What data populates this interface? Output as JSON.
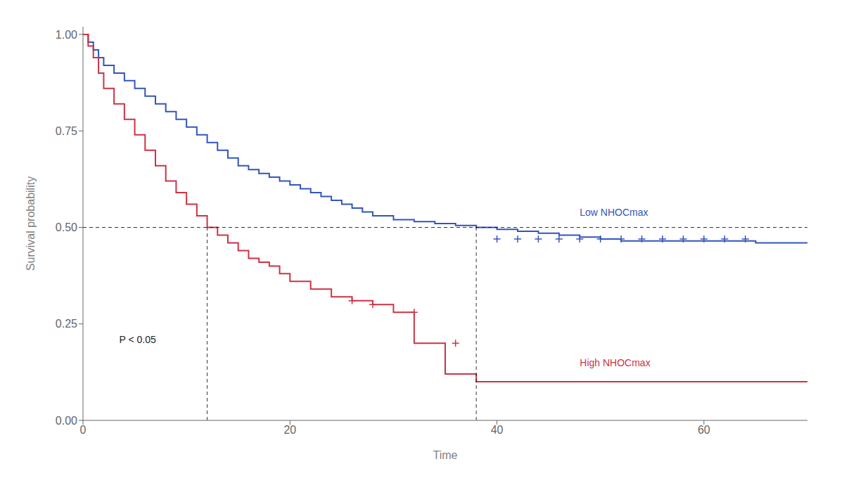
{
  "chart_data": {
    "type": "line",
    "xlabel": "Time",
    "ylabel": "Survival probability",
    "xlim": [
      0,
      70
    ],
    "xticks": [
      0,
      20,
      40,
      60
    ],
    "ylim": [
      0,
      1.02
    ],
    "yticks": [
      {
        "value": 0,
        "label": "0.00"
      },
      0.25,
      {
        "value": 0.5,
        "label": "0.50"
      },
      0.75,
      {
        "value": 1,
        "label": "1.00"
      }
    ],
    "grid": false,
    "series": [
      {
        "type": "step",
        "color": "#3355BB",
        "x": [
          0,
          0.5,
          0.5,
          1,
          1,
          1.5,
          1.5,
          2,
          2,
          3,
          3,
          4,
          4,
          5,
          5,
          6,
          6,
          7,
          7,
          8,
          8,
          9,
          9,
          10,
          10,
          11,
          11,
          12,
          12,
          13,
          13,
          14,
          14,
          15,
          15,
          16,
          16,
          17,
          17,
          18,
          18,
          19,
          19,
          20,
          20,
          21,
          21,
          22,
          22,
          23,
          23,
          24,
          24,
          25,
          25,
          26,
          26,
          27,
          27,
          28,
          28,
          30,
          30,
          32,
          32,
          34,
          34,
          36,
          36,
          38,
          38,
          40,
          40,
          42,
          42,
          44,
          44,
          46,
          46,
          48,
          48,
          50,
          50,
          52,
          52,
          65,
          65,
          70
        ],
        "values": [
          1.0,
          1.0,
          0.98,
          0.98,
          0.96,
          0.96,
          0.94,
          0.94,
          0.92,
          0.92,
          0.9,
          0.9,
          0.88,
          0.88,
          0.86,
          0.86,
          0.84,
          0.84,
          0.82,
          0.82,
          0.8,
          0.8,
          0.78,
          0.78,
          0.76,
          0.76,
          0.74,
          0.74,
          0.72,
          0.72,
          0.7,
          0.7,
          0.68,
          0.68,
          0.66,
          0.66,
          0.65,
          0.65,
          0.64,
          0.64,
          0.63,
          0.63,
          0.62,
          0.62,
          0.61,
          0.61,
          0.6,
          0.6,
          0.59,
          0.59,
          0.58,
          0.58,
          0.57,
          0.57,
          0.56,
          0.56,
          0.55,
          0.55,
          0.54,
          0.54,
          0.53,
          0.53,
          0.52,
          0.52,
          0.515,
          0.515,
          0.51,
          0.51,
          0.505,
          0.505,
          0.5,
          0.5,
          0.495,
          0.495,
          0.49,
          0.49,
          0.485,
          0.485,
          0.48,
          0.48,
          0.475,
          0.475,
          0.47,
          0.47,
          0.465,
          0.465,
          0.46,
          0.46
        ]
      },
      {
        "type": "scatter",
        "marker": "plus",
        "color": "#3355BB",
        "x": [
          40,
          42,
          44,
          46,
          48,
          50,
          52,
          54,
          56,
          58,
          60,
          62,
          64
        ],
        "values": [
          0.47,
          0.47,
          0.47,
          0.47,
          0.47,
          0.47,
          0.47,
          0.47,
          0.47,
          0.47,
          0.47,
          0.47,
          0.47
        ]
      },
      {
        "type": "step",
        "color": "#CC3344",
        "x": [
          0,
          0.5,
          0.5,
          1,
          1,
          1.5,
          1.5,
          2,
          2,
          3,
          3,
          4,
          4,
          5,
          5,
          6,
          6,
          7,
          7,
          8,
          8,
          9,
          9,
          10,
          10,
          11,
          11,
          12,
          12,
          13,
          13,
          14,
          14,
          15,
          15,
          16,
          16,
          17,
          17,
          18,
          18,
          19,
          19,
          20,
          20,
          22,
          22,
          24,
          24,
          26,
          26,
          28,
          28,
          30,
          30,
          32,
          32,
          35,
          35,
          38,
          38,
          40,
          40,
          65,
          65,
          70
        ],
        "values": [
          1.0,
          1.0,
          0.97,
          0.97,
          0.94,
          0.94,
          0.9,
          0.9,
          0.86,
          0.86,
          0.82,
          0.82,
          0.78,
          0.78,
          0.74,
          0.74,
          0.7,
          0.7,
          0.66,
          0.66,
          0.62,
          0.62,
          0.59,
          0.59,
          0.56,
          0.56,
          0.53,
          0.53,
          0.5,
          0.5,
          0.48,
          0.48,
          0.46,
          0.46,
          0.44,
          0.44,
          0.42,
          0.42,
          0.41,
          0.41,
          0.4,
          0.4,
          0.38,
          0.38,
          0.36,
          0.36,
          0.34,
          0.34,
          0.32,
          0.32,
          0.31,
          0.31,
          0.3,
          0.3,
          0.28,
          0.28,
          0.2,
          0.2,
          0.12,
          0.12,
          0.1,
          0.1,
          0.1,
          0.1,
          0.1,
          0.1
        ]
      },
      {
        "type": "scatter",
        "marker": "plus",
        "color": "#CC3344",
        "x": [
          26,
          28,
          32,
          36
        ],
        "values": [
          0.31,
          0.3,
          0.28,
          0.2
        ]
      }
    ],
    "hlines": [
      0.5
    ],
    "vlines": [
      {
        "x": 12,
        "ylim": [
          0,
          0.5
        ]
      },
      {
        "x": 38,
        "ylim": [
          0,
          0.5
        ]
      }
    ],
    "annotations": [
      {
        "text": "P < 0.05",
        "x": 3.5,
        "y": 0.2
      },
      {
        "text": "Low NHOCmax",
        "x": 48,
        "y": 0.53,
        "color": "#3355BB"
      },
      {
        "text": "High NHOCmax",
        "x": 48,
        "y": 0.14,
        "color": "#CC3344"
      }
    ]
  }
}
